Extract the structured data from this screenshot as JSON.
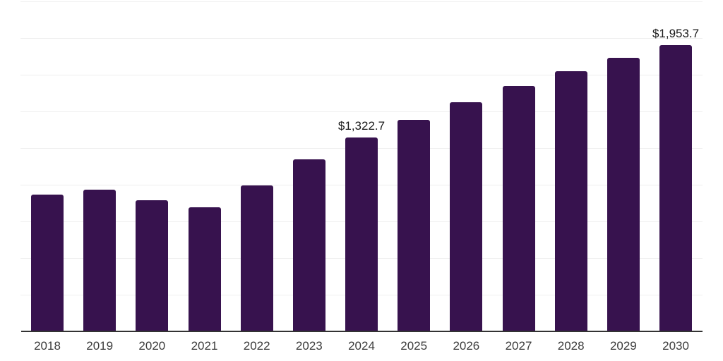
{
  "chart_data": {
    "type": "bar",
    "title": "",
    "xlabel": "",
    "ylabel": "",
    "categories": [
      "2018",
      "2019",
      "2020",
      "2021",
      "2022",
      "2023",
      "2024",
      "2025",
      "2026",
      "2027",
      "2028",
      "2029",
      "2030"
    ],
    "values": [
      934.0,
      966.1,
      892.9,
      844.8,
      993.8,
      1174.6,
      1322.7,
      1442.4,
      1562.6,
      1673.2,
      1771.8,
      1863.1,
      1953.7
    ],
    "data_labels": [
      "",
      "",
      "",
      "",
      "",
      "",
      "$1,322.7",
      "",
      "",
      "",
      "",
      "",
      "$1,953.7"
    ],
    "ylim": [
      0,
      2250
    ],
    "grid_step": 250,
    "grid": "horizontal",
    "legend_position": "none",
    "colors": {
      "bar": "#37124E",
      "gridline": "#efefef",
      "axis_line": "#333333",
      "data_label": "#1a1a1a",
      "tick_label": "#3c3c3c",
      "background": "#ffffff"
    }
  }
}
